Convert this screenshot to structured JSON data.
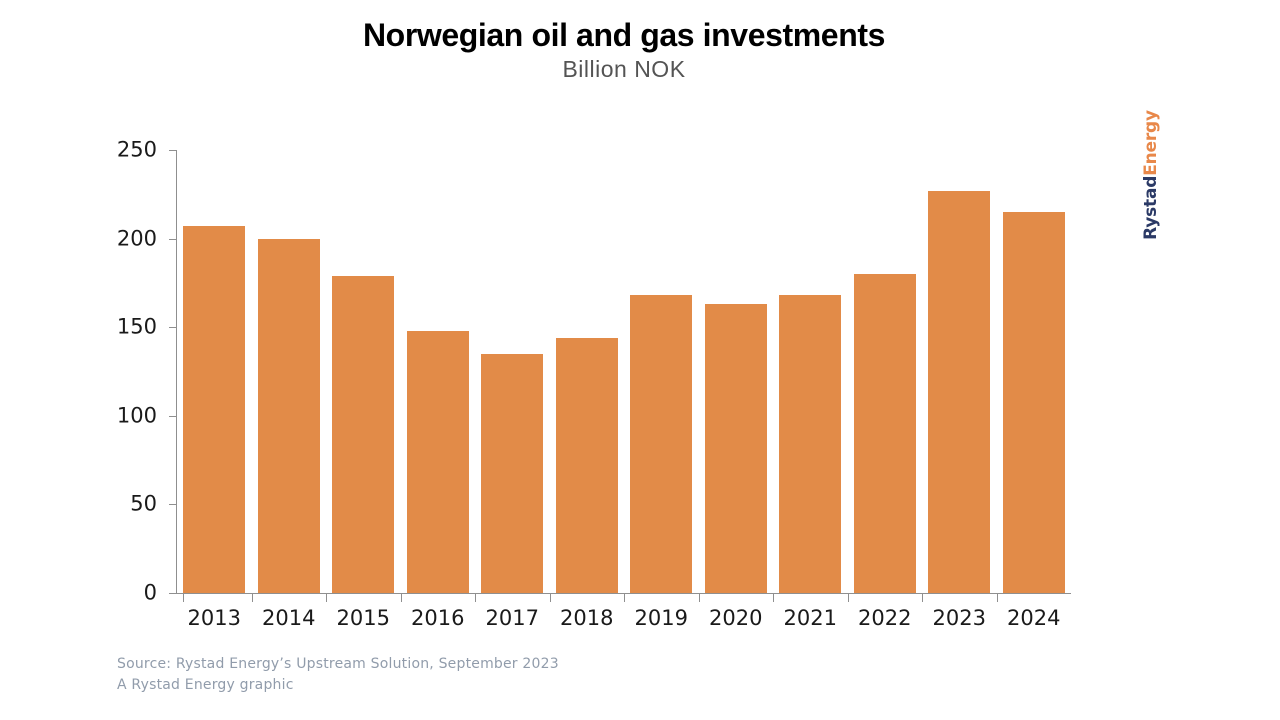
{
  "header": {
    "title": "Norwegian oil and gas investments",
    "subtitle": "Billion NOK"
  },
  "chart_data": {
    "type": "bar",
    "title": "Norwegian oil and gas investments",
    "subtitle": "Billion NOK",
    "categories": [
      "2013",
      "2014",
      "2015",
      "2016",
      "2017",
      "2018",
      "2019",
      "2020",
      "2021",
      "2022",
      "2023",
      "2024"
    ],
    "values": [
      207,
      200,
      179,
      148,
      135,
      144,
      168,
      163,
      168,
      180,
      227,
      215
    ],
    "xlabel": "",
    "ylabel": "Billion NOK",
    "ylim": [
      0,
      250
    ],
    "yticks": [
      0,
      50,
      100,
      150,
      200,
      250
    ],
    "grid": false,
    "legend": null,
    "bar_color": "#e28b48",
    "axis_color": "#8f8f8f",
    "tick_label_color": "#1a1a1a"
  },
  "logo": {
    "part1": "Rystad",
    "part2": "Energy",
    "part1_color": "#2b3a66",
    "part2_color": "#e8884a"
  },
  "footer": {
    "source_line1": "Source: Rystad Energy’s Upstream Solution, September 2023",
    "source_line2": "A Rystad Energy graphic",
    "text_color": "#919cab"
  }
}
